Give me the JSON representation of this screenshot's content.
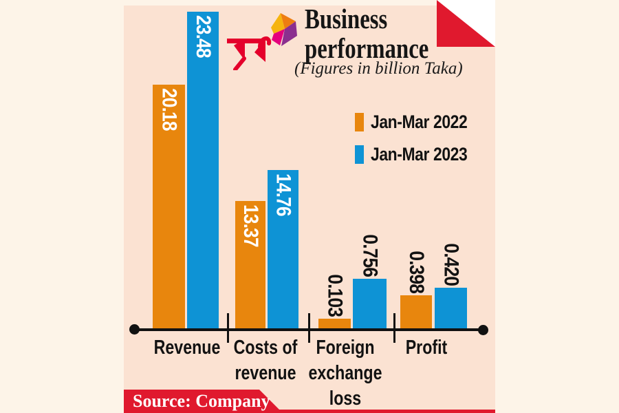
{
  "header": {
    "title": "Business performance",
    "subtitle": "(Figures in billion Taka)",
    "brand_wordmark": "রবি"
  },
  "legend": [
    {
      "label": "Jan-Mar 2022",
      "color": "#e8860d"
    },
    {
      "label": "Jan-Mar 2023",
      "color": "#0e93d5"
    }
  ],
  "source": "Source: Company",
  "chart_data": {
    "type": "bar",
    "title": "Business performance",
    "subtitle": "(Figures in billion Taka)",
    "unit": "billion Taka",
    "categories": [
      "Revenue",
      "Costs of revenue",
      "Foreign exchange loss",
      "Profit"
    ],
    "category_lines": [
      [
        "Revenue"
      ],
      [
        "Costs of",
        "revenue"
      ],
      [
        "Foreign",
        "exchange",
        "loss"
      ],
      [
        "Profit"
      ]
    ],
    "series": [
      {
        "name": "Jan-Mar 2022",
        "color": "#e8860d",
        "values": [
          20.18,
          13.37,
          0.103,
          0.398
        ],
        "value_labels": [
          "20.18",
          "13.37",
          "0.103",
          "0.398"
        ]
      },
      {
        "name": "Jan-Mar 2023",
        "color": "#0e93d5",
        "values": [
          23.48,
          14.76,
          0.756,
          0.42
        ],
        "value_labels": [
          "23.48",
          "14.76",
          "0.756",
          "0.420"
        ]
      }
    ],
    "legend_position": "upper-right",
    "value_axis": "none (values printed on bars, small values not to scale)",
    "colors": {
      "panel_bg": "#fbe2d2",
      "page_bg": "#fdf4e8",
      "accent_red": "#e0192e",
      "brand_red": "#e4002b",
      "label_on_bar": "#ffffff",
      "label_above_bar": "#121212"
    }
  }
}
